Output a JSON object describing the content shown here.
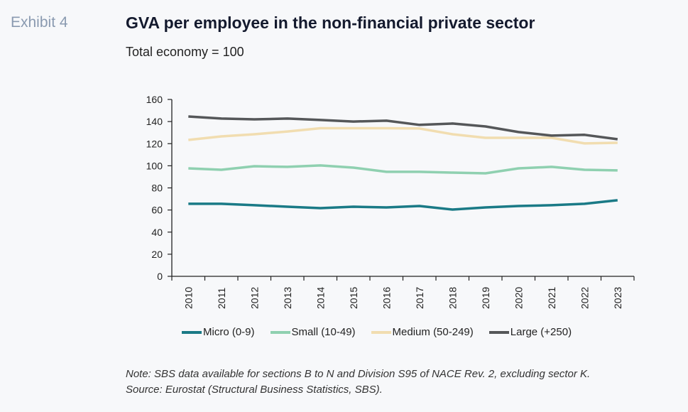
{
  "header": {
    "exhibit_label": "Exhibit 4",
    "title": "GVA per employee in the non-financial private sector",
    "subtitle": "Total economy = 100"
  },
  "chart_data": {
    "type": "line",
    "title": "GVA per employee in the non-financial private sector",
    "subtitle": "Total economy = 100",
    "xlabel": "",
    "ylabel": "",
    "ylim": [
      0,
      160
    ],
    "yticks": [
      "0",
      "20",
      "40",
      "60",
      "80",
      "100",
      "120",
      "140",
      "160"
    ],
    "grid": false,
    "legend_position": "bottom",
    "categories": [
      "2010",
      "2011",
      "2012",
      "2013",
      "2014",
      "2015",
      "2016",
      "2017",
      "2018",
      "2019",
      "2020",
      "2021",
      "2022",
      "2023"
    ],
    "series": [
      {
        "name": "Micro (0-9)",
        "color": "#1a7a86",
        "values": [
          65.6,
          65.6,
          64.3,
          63.0,
          61.7,
          63.0,
          62.3,
          63.6,
          60.4,
          62.3,
          63.6,
          64.3,
          65.6,
          68.8
        ]
      },
      {
        "name": "Small (10-49)",
        "color": "#8fd0b0",
        "values": [
          97.7,
          96.4,
          99.6,
          99.0,
          100.3,
          98.3,
          94.5,
          94.5,
          93.8,
          93.2,
          97.7,
          99.0,
          96.4,
          95.8
        ]
      },
      {
        "name": "Medium (50-249)",
        "color": "#f1ddb0",
        "values": [
          123.4,
          126.6,
          128.5,
          131.0,
          134.0,
          134.0,
          134.0,
          133.7,
          128.5,
          125.3,
          125.3,
          125.3,
          120.2,
          120.8
        ]
      },
      {
        "name": "Large (+250)",
        "color": "#555759",
        "values": [
          144.6,
          142.7,
          142.0,
          142.7,
          141.4,
          140.0,
          140.8,
          137.0,
          138.2,
          135.6,
          130.5,
          127.3,
          128.0,
          124.0
        ]
      }
    ]
  },
  "footer": {
    "note": "Note: SBS data available for sections B to N and Division S95 of NACE Rev. 2, excluding sector K.",
    "source": "Source: Eurostat (Structural Business Statistics, SBS)."
  }
}
